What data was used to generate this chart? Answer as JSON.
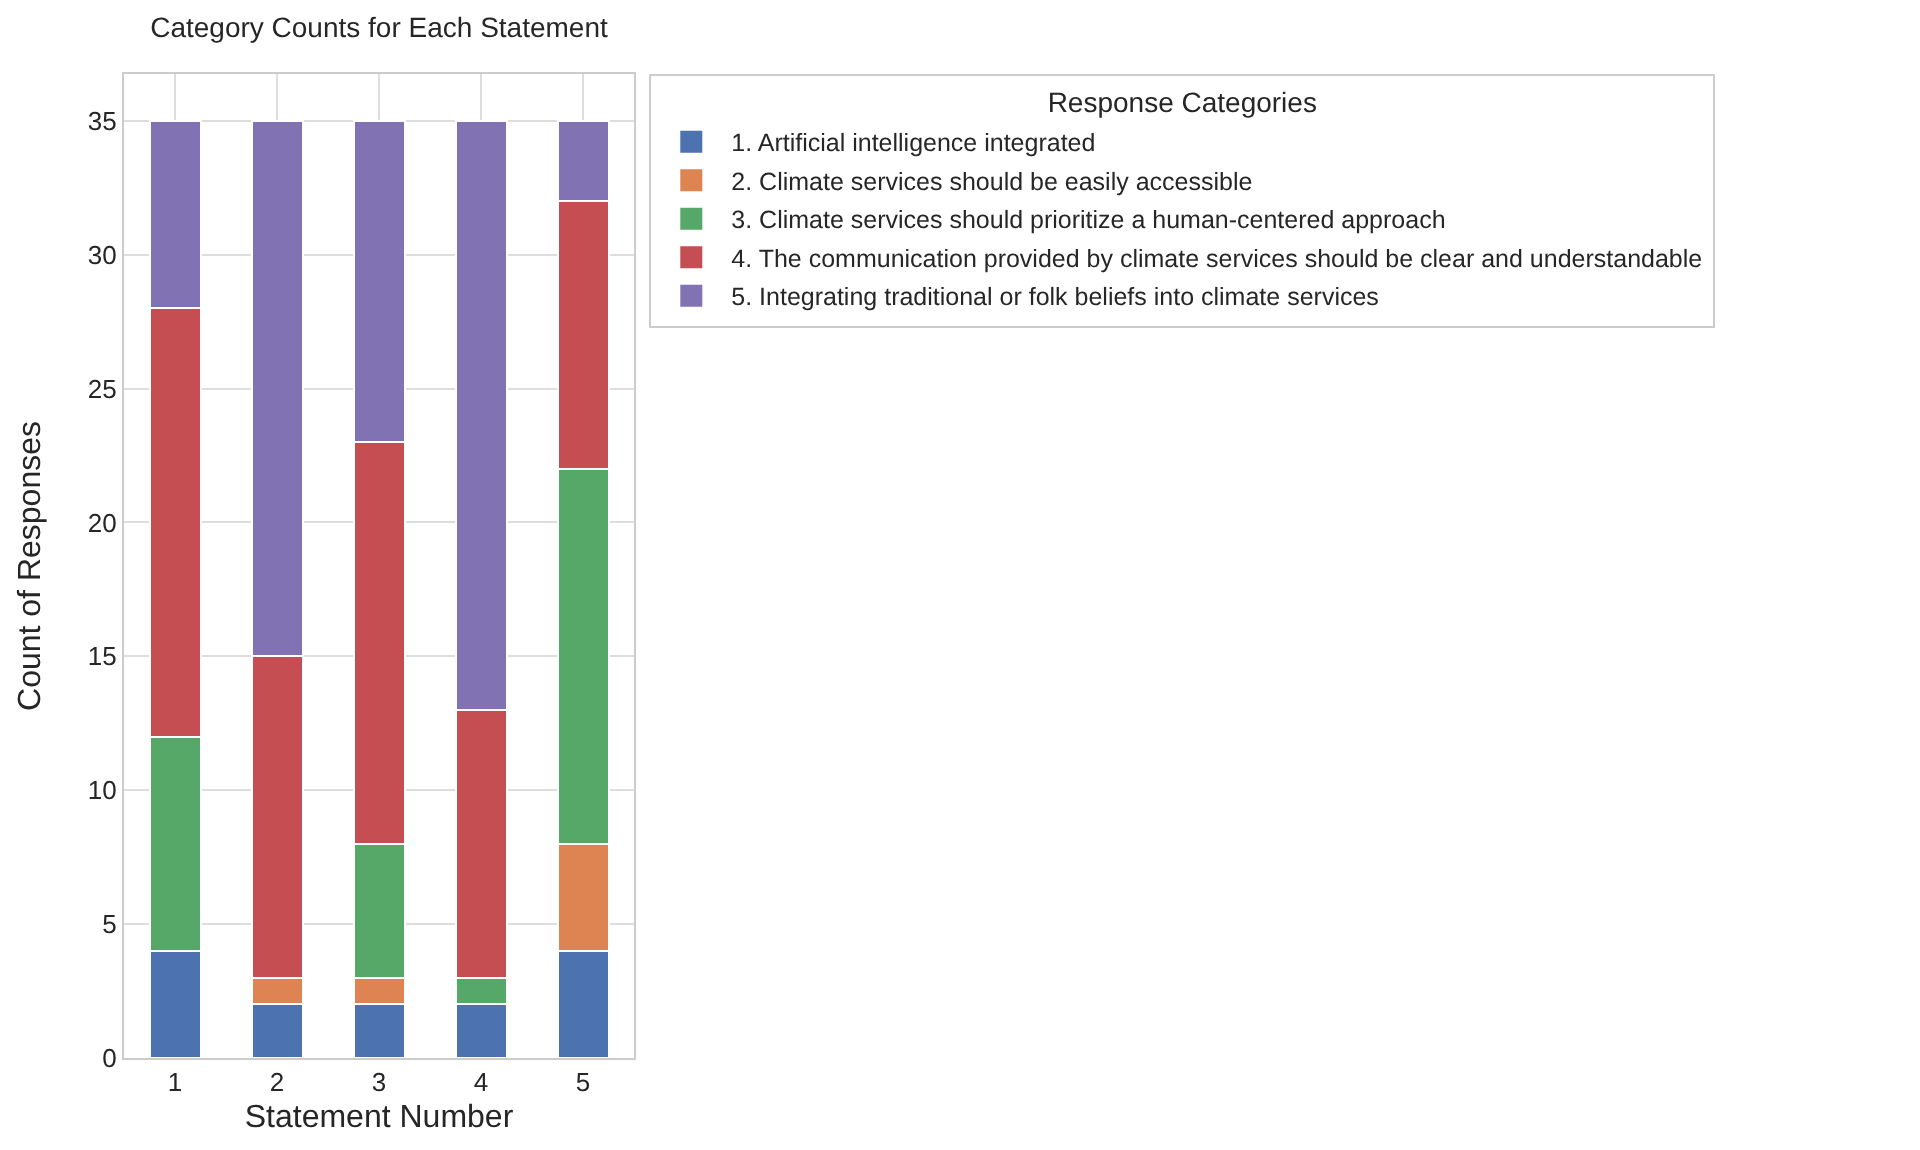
{
  "chart_data": {
    "type": "bar",
    "title": "Category Counts for Each Statement",
    "xlabel": "Statement Number",
    "ylabel": "Count of Responses",
    "legend_title": "Response Categories",
    "categories": [
      "1",
      "2",
      "3",
      "4",
      "5"
    ],
    "stacked": true,
    "series": [
      {
        "name": "1. Artificial intelligence integrated",
        "color": "#4c72b0",
        "values": [
          4,
          2,
          2,
          2,
          4
        ]
      },
      {
        "name": "2. Climate services should be easily accessible",
        "color": "#dd8452",
        "values": [
          0,
          1,
          1,
          0,
          4
        ]
      },
      {
        "name": "3. Climate services should prioritize a human-centered approach",
        "color": "#55a868",
        "values": [
          8,
          0,
          5,
          1,
          14
        ]
      },
      {
        "name": "4. The communication provided by climate services should be clear and understandable",
        "color": "#c44e52",
        "values": [
          16,
          12,
          15,
          10,
          10
        ]
      },
      {
        "name": "5. Integrating traditional or folk beliefs into climate services",
        "color": "#8172b3",
        "values": [
          7,
          20,
          12,
          22,
          3
        ]
      }
    ],
    "ylim": [
      0,
      36.75
    ],
    "yticks": [
      0,
      5,
      10,
      15,
      20,
      25,
      30,
      35
    ],
    "grid": true,
    "legend": "top right"
  }
}
